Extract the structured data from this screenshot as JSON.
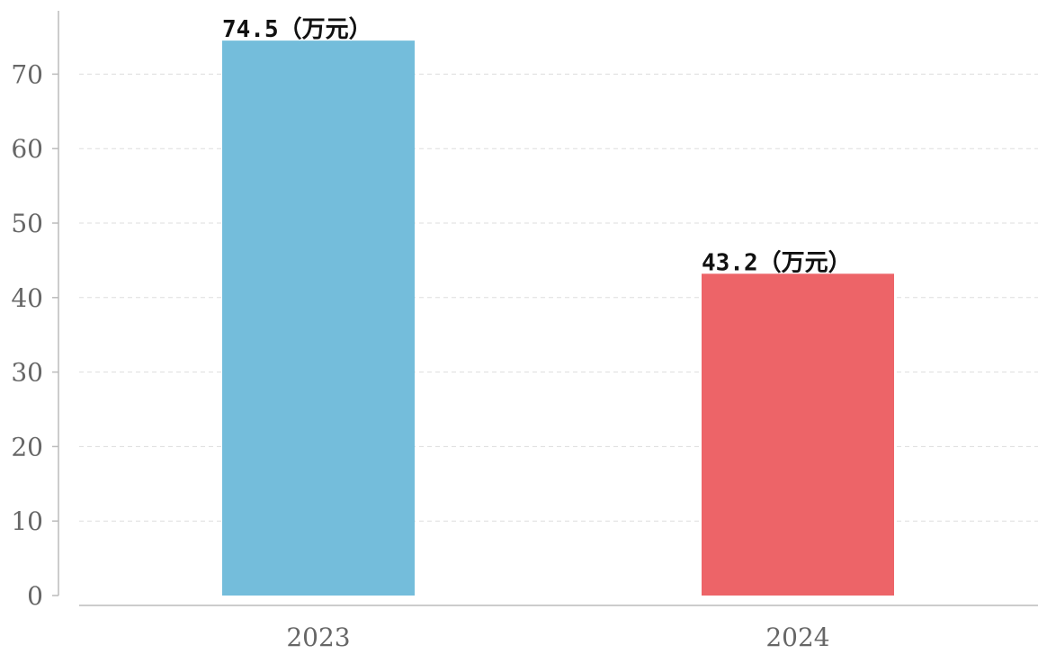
{
  "chart_data": {
    "type": "bar",
    "categories": [
      "2023",
      "2024"
    ],
    "values": [
      74.5,
      43.2
    ],
    "data_labels": [
      "74.5（万元）",
      "43.2（万元）"
    ],
    "colors": [
      "#74bddb",
      "#ed6468"
    ],
    "title": "",
    "xlabel": "",
    "ylabel": "",
    "ylim": [
      0,
      78
    ],
    "yticks": [
      0,
      10,
      20,
      30,
      40,
      50,
      60,
      70
    ],
    "grid": true,
    "legend": "none"
  }
}
